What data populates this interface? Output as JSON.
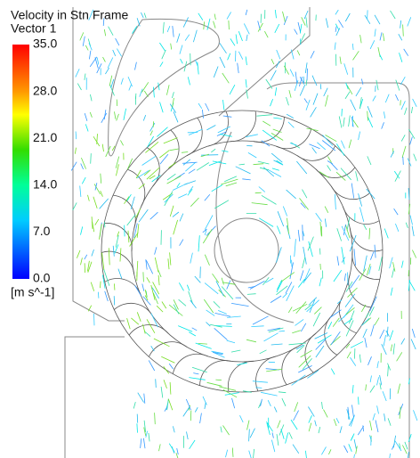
{
  "legend": {
    "title": "Velocity in Stn Frame",
    "subtitle": "Vector 1",
    "ticks": [
      "35.0",
      "28.0",
      "21.0",
      "14.0",
      "7.0",
      "0.0"
    ],
    "unit": "[m s^-1]"
  }
}
